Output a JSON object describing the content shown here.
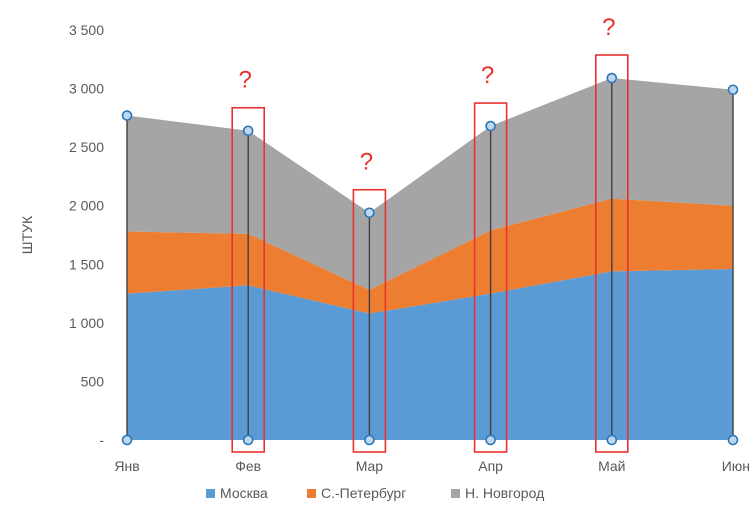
{
  "chart_data": {
    "type": "area",
    "stacked": true,
    "categories": [
      "Янв",
      "Фев",
      "Мар",
      "Апр",
      "Май",
      "Июн"
    ],
    "series": [
      {
        "name": "Москва",
        "values": [
          1250,
          1320,
          1080,
          1250,
          1440,
          1460
        ],
        "color": "#5b9bd5"
      },
      {
        "name": "С.-Петербург",
        "values": [
          530,
          440,
          200,
          540,
          620,
          540
        ],
        "color": "#ed7d31"
      },
      {
        "name": "Н. Новгород",
        "values": [
          990,
          880,
          660,
          890,
          1030,
          990
        ],
        "color": "#a5a5a5"
      }
    ],
    "ylabel": "ШТУК",
    "ylim": [
      0,
      3500
    ],
    "yticks": [
      {
        "value": 0,
        "label": "-"
      },
      {
        "value": 500,
        "label": "500"
      },
      {
        "value": 1000,
        "label": "1 000"
      },
      {
        "value": 1500,
        "label": "1 500"
      },
      {
        "value": 2000,
        "label": "2 000"
      },
      {
        "value": 2500,
        "label": "2 500"
      },
      {
        "value": 3000,
        "label": "3 000"
      },
      {
        "value": 3500,
        "label": "3 500"
      }
    ],
    "grid": false,
    "legend_position": "bottom",
    "drop_lines": true,
    "annotations": [
      {
        "category": "Фев",
        "text": "?"
      },
      {
        "category": "Мар",
        "text": "?"
      },
      {
        "category": "Апр",
        "text": "?"
      },
      {
        "category": "Май",
        "text": "?"
      }
    ],
    "colors": {
      "marker_fill": "#bdd7ee",
      "marker_stroke": "#2e75b6",
      "drop_line": "#404040",
      "highlight": "#e8322f"
    }
  }
}
